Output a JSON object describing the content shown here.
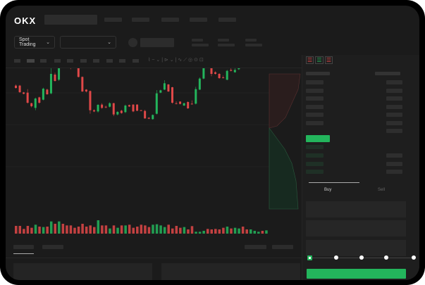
{
  "header": {
    "logo": "OKX"
  },
  "toolbar": {
    "market_select": "Spot Trading",
    "pair_select": ""
  },
  "trade_panel": {
    "tabs": [
      {
        "label": "Buy",
        "active": true
      },
      {
        "label": "Sell",
        "active": false
      }
    ],
    "leverage_steps": 5,
    "selected_step": 0
  },
  "colors": {
    "up": "#23b55c",
    "down": "#e04848",
    "background": "#1b1b1b",
    "accent": "#23b55c"
  },
  "icons": {
    "dropdown": "chevron-down-icon",
    "orderbook_views": [
      "orderbook-both-icon",
      "orderbook-bids-icon",
      "orderbook-asks-icon"
    ]
  },
  "chart_data": {
    "type": "candlestick",
    "candles": [
      [
        385,
        375,
        390,
        372
      ],
      [
        385,
        357,
        388,
        354
      ],
      [
        356,
        350,
        358,
        348
      ],
      [
        355,
        312,
        370,
        308
      ],
      [
        310,
        297,
        312,
        292
      ],
      [
        290,
        330,
        334,
        280
      ],
      [
        335,
        312,
        338,
        308
      ],
      [
        325,
        372,
        376,
        322
      ],
      [
        368,
        348,
        372,
        346
      ],
      [
        352,
        435,
        460,
        348
      ],
      [
        432,
        405,
        440,
        402
      ],
      [
        410,
        495,
        535,
        405
      ],
      [
        500,
        488,
        506,
        484
      ],
      [
        492,
        482,
        496,
        478
      ],
      [
        492,
        460,
        500,
        455
      ],
      [
        482,
        475,
        486,
        472
      ],
      [
        485,
        422,
        490,
        420
      ],
      [
        422,
        360,
        424,
        358
      ],
      [
        368,
        360,
        370,
        356
      ],
      [
        362,
        280,
        364,
        265
      ],
      [
        280,
        275,
        284,
        272
      ],
      [
        275,
        303,
        306,
        270
      ],
      [
        304,
        290,
        310,
        286
      ],
      [
        295,
        292,
        300,
        288
      ],
      [
        295,
        310,
        314,
        292
      ],
      [
        310,
        262,
        312,
        255
      ],
      [
        262,
        273,
        276,
        258
      ],
      [
        278,
        268,
        282,
        265
      ],
      [
        272,
        300,
        304,
        268
      ],
      [
        302,
        296,
        304,
        294
      ],
      [
        304,
        275,
        306,
        272
      ],
      [
        304,
        278,
        306,
        276
      ],
      [
        280,
        278,
        282,
        277
      ],
      [
        277,
        245,
        282,
        244
      ],
      [
        248,
        244,
        250,
        242
      ],
      [
        242,
        260,
        262,
        240
      ],
      [
        265,
        352,
        366,
        262
      ],
      [
        355,
        365,
        368,
        353
      ],
      [
        368,
        395,
        408,
        366
      ],
      [
        390,
        360,
        392,
        358
      ],
      [
        378,
        312,
        380,
        308
      ],
      [
        310,
        308,
        318,
        305
      ],
      [
        317,
        307,
        318,
        305
      ],
      [
        300,
        310,
        312,
        298
      ],
      [
        315,
        288,
        318,
        286
      ],
      [
        308,
        305,
        322,
        304
      ],
      [
        308,
        370,
        380,
        305
      ],
      [
        368,
        415,
        420,
        366
      ],
      [
        415,
        540,
        585,
        412
      ],
      [
        545,
        508,
        552,
        505
      ],
      [
        507,
        435,
        510,
        425
      ],
      [
        442,
        435,
        446,
        432
      ],
      [
        435,
        417,
        438,
        414
      ],
      [
        420,
        418,
        428,
        416
      ],
      [
        410,
        448,
        452,
        408
      ],
      [
        452,
        448,
        464,
        446
      ],
      [
        442,
        452,
        470,
        440
      ],
      [
        455,
        533,
        536,
        452
      ],
      [
        540,
        502,
        542,
        500
      ],
      [
        502,
        488,
        505,
        486
      ],
      [
        482,
        508,
        510,
        480
      ],
      [
        510,
        537,
        556,
        508
      ],
      [
        538,
        562,
        576,
        536
      ],
      [
        538,
        518,
        540,
        508
      ],
      [
        514,
        532,
        548,
        512
      ]
    ],
    "volume": [
      33,
      33,
      20,
      33,
      25,
      38,
      30,
      28,
      30,
      52,
      42,
      52,
      42,
      35,
      35,
      25,
      30,
      42,
      30,
      35,
      28,
      57,
      35,
      35,
      22,
      35,
      25,
      35,
      35,
      38,
      25,
      30,
      38,
      35,
      28,
      38,
      40,
      35,
      28,
      38,
      22,
      33,
      25,
      28,
      18,
      32,
      8,
      8,
      12,
      20,
      18,
      20,
      18,
      25,
      30,
      22,
      25,
      22,
      30,
      18,
      18,
      12,
      8,
      12,
      14
    ],
    "grid": true
  }
}
